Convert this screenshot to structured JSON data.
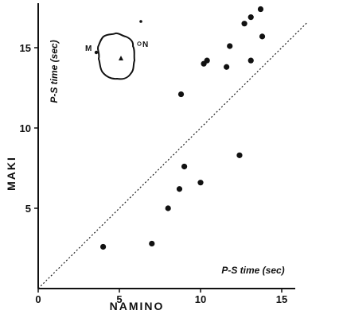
{
  "chart_data": {
    "type": "scatter",
    "xlabel": "NAMINO",
    "ylabel": "MAKI",
    "x_annotation": "P-S time (sec)",
    "y_annotation": "P-S time (sec)",
    "xlim": [
      0,
      15.5
    ],
    "ylim": [
      0,
      17.5
    ],
    "x_ticks": [
      "0",
      "5",
      "10",
      "15"
    ],
    "y_ticks": [
      "5",
      "10",
      "15"
    ],
    "reference_line": "y = x (dashed)",
    "points": [
      {
        "x": 4.0,
        "y": 2.6
      },
      {
        "x": 7.0,
        "y": 2.8
      },
      {
        "x": 8.0,
        "y": 5.0
      },
      {
        "x": 8.7,
        "y": 6.2
      },
      {
        "x": 9.0,
        "y": 7.6
      },
      {
        "x": 10.0,
        "y": 6.6
      },
      {
        "x": 8.8,
        "y": 12.1
      },
      {
        "x": 10.2,
        "y": 14.0
      },
      {
        "x": 10.4,
        "y": 14.2
      },
      {
        "x": 11.6,
        "y": 13.8
      },
      {
        "x": 11.8,
        "y": 15.1
      },
      {
        "x": 12.4,
        "y": 8.3
      },
      {
        "x": 12.7,
        "y": 16.5
      },
      {
        "x": 13.1,
        "y": 16.9
      },
      {
        "x": 13.1,
        "y": 14.2
      },
      {
        "x": 13.7,
        "y": 17.4
      },
      {
        "x": 13.8,
        "y": 15.7
      }
    ],
    "inset_map": {
      "labels": {
        "station_left": "M",
        "station_right": "N"
      }
    }
  }
}
